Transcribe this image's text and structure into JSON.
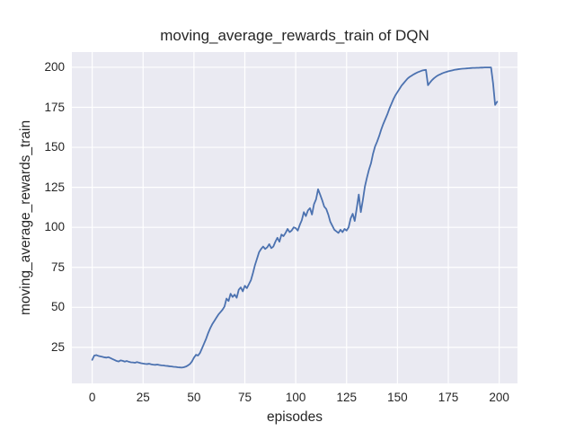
{
  "figure": {
    "background": "#ffffff",
    "axes_background": "#eaeaf2",
    "grid_color": "#ffffff",
    "text_color": "#262626",
    "line_color": "#4c72b0"
  },
  "chart_data": {
    "type": "line",
    "title": "moving_average_rewards_train of DQN",
    "xlabel": "episodes",
    "ylabel": "moving_average_rewards_train",
    "xlim": [
      -10,
      209
    ],
    "ylim": [
      2.5,
      209.5
    ],
    "xticks": [
      0,
      25,
      50,
      75,
      100,
      125,
      150,
      175,
      200
    ],
    "yticks": [
      25,
      50,
      75,
      100,
      125,
      150,
      175,
      200
    ],
    "grid": true,
    "legend_position": "none",
    "series": [
      {
        "name": "moving_average_rewards_train",
        "color": "#4c72b0",
        "x_start": 0,
        "x_step": 1,
        "values": [
          17.2,
          19.9,
          20.2,
          19.7,
          19.4,
          19.1,
          18.8,
          18.6,
          18.9,
          18.3,
          17.7,
          17.1,
          16.5,
          16.2,
          16.9,
          16.6,
          16.1,
          16.5,
          16.0,
          15.7,
          15.6,
          15.4,
          15.8,
          15.5,
          15.1,
          14.9,
          14.7,
          14.6,
          14.8,
          14.4,
          14.2,
          14.1,
          14.3,
          14.0,
          13.8,
          13.7,
          13.5,
          13.4,
          13.2,
          13.1,
          12.9,
          12.8,
          12.6,
          12.5,
          12.4,
          12.6,
          13.0,
          13.7,
          14.6,
          16.2,
          18.6,
          20.4,
          19.9,
          21.6,
          24.5,
          27.5,
          30.5,
          34.0,
          37.0,
          39.5,
          41.5,
          43.5,
          45.5,
          47.0,
          48.5,
          50.5,
          55.5,
          54.0,
          58.5,
          56.5,
          58.0,
          56.0,
          61.0,
          62.5,
          60.0,
          63.5,
          62.0,
          64.5,
          67.0,
          71.5,
          76.5,
          80.5,
          84.5,
          86.5,
          88.0,
          86.5,
          87.5,
          89.5,
          87.0,
          88.0,
          91.0,
          93.5,
          91.0,
          95.5,
          94.5,
          96.5,
          99.0,
          97.0,
          98.0,
          100.0,
          99.5,
          98.0,
          101.5,
          104.5,
          109.5,
          107.0,
          110.5,
          112.0,
          108.0,
          114.5,
          117.5,
          123.8,
          120.5,
          117.0,
          113.0,
          111.5,
          108.0,
          103.5,
          101.0,
          98.5,
          97.5,
          96.5,
          98.5,
          97.0,
          99.0,
          98.0,
          100.0,
          105.5,
          108.5,
          104.0,
          112.0,
          120.5,
          109.5,
          117.0,
          125.5,
          131.0,
          136.0,
          140.0,
          146.0,
          150.5,
          153.5,
          157.0,
          161.0,
          164.5,
          167.5,
          170.5,
          174.0,
          177.0,
          180.0,
          182.5,
          184.5,
          186.5,
          188.5,
          190.0,
          191.5,
          193.0,
          194.0,
          194.8,
          195.6,
          196.3,
          196.9,
          197.4,
          197.9,
          198.2,
          198.4,
          188.8,
          190.5,
          192.0,
          193.2,
          194.2,
          195.0,
          195.6,
          196.2,
          196.7,
          197.1,
          197.5,
          197.8,
          198.1,
          198.4,
          198.6,
          198.8,
          199.0,
          199.1,
          199.2,
          199.3,
          199.4,
          199.5,
          199.6,
          199.6,
          199.7,
          199.7,
          199.8,
          199.8,
          199.9,
          199.9,
          199.9,
          199.9,
          190.0,
          176.5,
          178.5
        ]
      }
    ]
  }
}
